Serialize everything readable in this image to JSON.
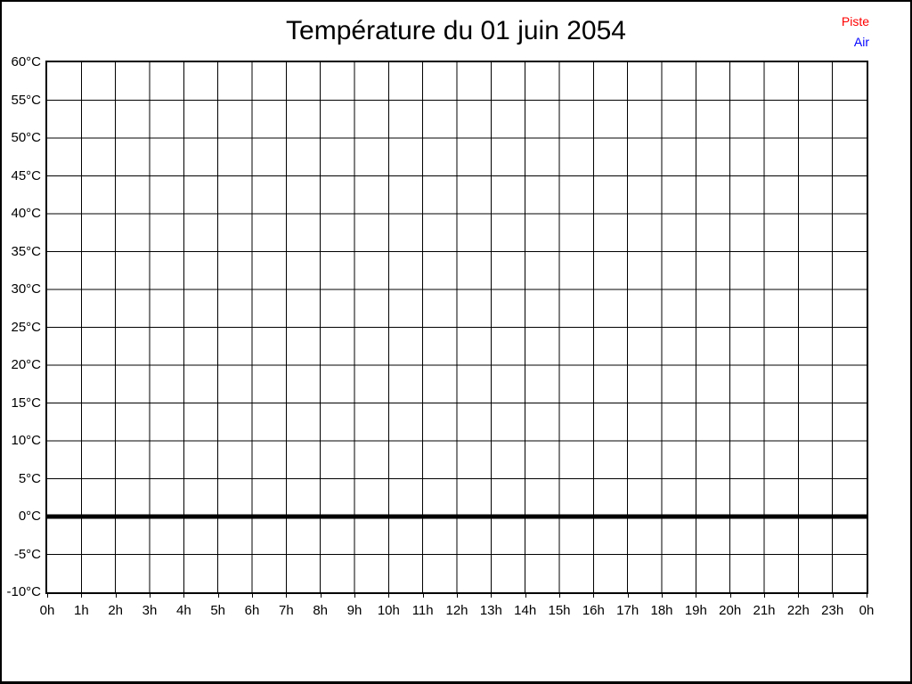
{
  "title": "Température du 01 juin 2054",
  "legend": {
    "position": "top-right",
    "items": [
      {
        "label": "Piste",
        "color": "#ff0000"
      },
      {
        "label": "Air",
        "color": "#0000ff"
      }
    ]
  },
  "chart_data": {
    "type": "line",
    "title": "Température du 01 juin 2054",
    "xlabel": "",
    "ylabel": "",
    "x_tick_labels": [
      "0h",
      "1h",
      "2h",
      "3h",
      "4h",
      "5h",
      "6h",
      "7h",
      "8h",
      "9h",
      "10h",
      "11h",
      "12h",
      "13h",
      "14h",
      "15h",
      "16h",
      "17h",
      "18h",
      "19h",
      "20h",
      "21h",
      "22h",
      "23h",
      "0h"
    ],
    "y_tick_labels": [
      "60°C",
      "55°C",
      "50°C",
      "45°C",
      "40°C",
      "35°C",
      "30°C",
      "25°C",
      "20°C",
      "15°C",
      "10°C",
      "5°C",
      "0°C",
      "-5°C",
      "-10°C"
    ],
    "ylim": [
      -10,
      60
    ],
    "y_step": 5,
    "x_hours": 24,
    "grid": true,
    "legend_position": "top-right",
    "zero_line": {
      "value": 0,
      "color": "#000000",
      "style": "thick"
    },
    "series": [
      {
        "name": "Piste",
        "color": "#ff0000",
        "values": []
      },
      {
        "name": "Air",
        "color": "#0000ff",
        "values": []
      }
    ]
  },
  "colors": {
    "grid": "#000000",
    "plot_border": "#000000",
    "window_border": "#000000",
    "background": "#ffffff"
  }
}
